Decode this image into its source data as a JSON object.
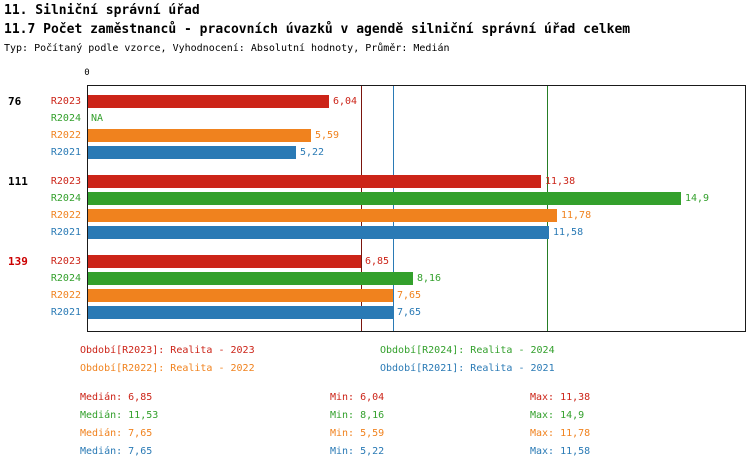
{
  "chart_data": {
    "type": "bar",
    "orientation": "horizontal",
    "title": "11. Silniční správní úřad",
    "subtitle": "11.7 Počet zaměstnanců - pracovních úvazků v agendě silniční správní úřad celkem",
    "meta": "Typ: Počítaný podle vzorce, Vyhodnocení: Absolutní hodnoty, Průměr: Medián",
    "axis": {
      "origin_label": "0",
      "xlim": [
        0,
        16.5
      ],
      "grid": false
    },
    "legend_position": "bottom",
    "series_order": [
      "R2023",
      "R2024",
      "R2022",
      "R2021"
    ],
    "colors": {
      "R2023": "#cc2418",
      "R2024": "#33a02c",
      "R2022": "#f0821e",
      "R2021": "#2a7ab5"
    },
    "groups": [
      {
        "label": "76",
        "label_color": "#000000",
        "bars": [
          {
            "series": "R2023",
            "value": 6.04,
            "display": "6,04"
          },
          {
            "series": "R2024",
            "value": null,
            "display": "NA"
          },
          {
            "series": "R2022",
            "value": 5.59,
            "display": "5,59"
          },
          {
            "series": "R2021",
            "value": 5.22,
            "display": "5,22"
          }
        ]
      },
      {
        "label": "111",
        "label_color": "#000000",
        "bars": [
          {
            "series": "R2023",
            "value": 11.38,
            "display": "11,38"
          },
          {
            "series": "R2024",
            "value": 14.9,
            "display": "14,9"
          },
          {
            "series": "R2022",
            "value": 11.78,
            "display": "11,78"
          },
          {
            "series": "R2021",
            "value": 11.58,
            "display": "11,58"
          }
        ]
      },
      {
        "label": "139",
        "label_color": "#cc0000",
        "bars": [
          {
            "series": "R2023",
            "value": 6.85,
            "display": "6,85"
          },
          {
            "series": "R2024",
            "value": 8.16,
            "display": "8,16"
          },
          {
            "series": "R2022",
            "value": 7.65,
            "display": "7,65"
          },
          {
            "series": "R2021",
            "value": 7.65,
            "display": "7,65"
          }
        ]
      }
    ],
    "median_lines": [
      {
        "series": "R2023",
        "value": 6.85,
        "color": "#7a150d"
      },
      {
        "series": "R2022",
        "value": 7.65,
        "color": "#f0821e"
      },
      {
        "series": "R2021",
        "value": 7.65,
        "color": "#2a7ab5"
      },
      {
        "series": "R2024",
        "value": 11.53,
        "color": "#267d26"
      }
    ]
  },
  "legend": [
    {
      "series": "R2023",
      "label": "Období[R2023]: Realita - 2023"
    },
    {
      "series": "R2024",
      "label": "Období[R2024]: Realita - 2024"
    },
    {
      "series": "R2022",
      "label": "Období[R2022]: Realita - 2022"
    },
    {
      "series": "R2021",
      "label": "Období[R2021]: Realita - 2021"
    }
  ],
  "stats": [
    {
      "series": "R2023",
      "median": "Medián: 6,85",
      "min": "Min: 6,04",
      "max": "Max: 11,38"
    },
    {
      "series": "R2024",
      "median": "Medián: 11,53",
      "min": "Min: 8,16",
      "max": "Max: 14,9"
    },
    {
      "series": "R2022",
      "median": "Medián: 7,65",
      "min": "Min: 5,59",
      "max": "Max: 11,78"
    },
    {
      "series": "R2021",
      "median": "Medián: 7,65",
      "min": "Min: 5,22",
      "max": "Max: 11,58"
    }
  ]
}
